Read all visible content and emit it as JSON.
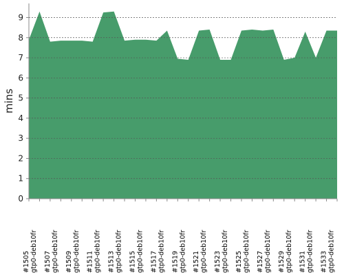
{
  "chart_data": {
    "type": "area",
    "y_label": "mins",
    "color": "#479c6b",
    "grid": true,
    "categories": [
      "#1505 gtp0-deb10fr",
      null,
      "#1507 gtp0-deb10fr",
      null,
      "#1509 gtp0-deb10fr",
      null,
      "#1511 gtp0-deb10fr",
      null,
      "#1513 gtp0-deb10fr",
      null,
      "#1515 gtp0-deb10fr",
      null,
      "#1517 gtp0-deb10fr",
      null,
      "#1519 gtp0-deb10fr",
      null,
      "#1521 gtp0-deb10fr",
      null,
      "#1523 gtp0-deb10fr",
      null,
      "#1525 gtp0-deb10fr",
      null,
      "#1527 gtp0-deb10fr",
      null,
      "#1529 gtp0-deb10fr",
      null,
      "#1531 gtp0-deb10fr",
      null,
      "#1533 gtp0-deb10fr",
      null
    ],
    "values": [
      7.9,
      9.3,
      7.8,
      7.85,
      7.85,
      7.85,
      7.8,
      9.25,
      9.3,
      7.85,
      7.9,
      7.9,
      7.85,
      8.35,
      6.95,
      6.9,
      8.35,
      8.4,
      6.9,
      6.9,
      8.35,
      8.4,
      8.35,
      8.4,
      6.9,
      7.0,
      8.3,
      7.0,
      8.35,
      8.35
    ],
    "ylim": [
      0,
      9.7
    ],
    "yticks": [
      0,
      1,
      2,
      3,
      4,
      5,
      6,
      7,
      8,
      9
    ]
  }
}
